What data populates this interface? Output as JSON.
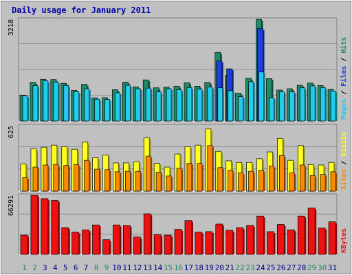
{
  "title": "Daily usage for January 2011",
  "colors": {
    "background": "#c0c0c0",
    "plot_bg": "#c0c0c0",
    "hits": "#1f8a6a",
    "files": "#1e3fe0",
    "pages": "#22ccee",
    "visits": "#ffff22",
    "sites": "#ff8a00",
    "kbytes": "#ee1111",
    "title": "#0000aa",
    "weekend": "#1f8a6a",
    "weekday": "#000088"
  },
  "chart_data": [
    {
      "type": "bar",
      "panel": "top",
      "axis_max_label": "3218",
      "ylim": [
        0,
        3218
      ],
      "categories": [
        "1",
        "2",
        "3",
        "4",
        "5",
        "6",
        "7",
        "8",
        "9",
        "10",
        "11",
        "12",
        "13",
        "14",
        "15",
        "16",
        "17",
        "18",
        "19",
        "20",
        "21",
        "22",
        "23",
        "24",
        "25",
        "26",
        "27",
        "28",
        "29",
        "30",
        "31"
      ],
      "weekend_days": [
        "1",
        "2",
        "8",
        "9",
        "15",
        "16",
        "22",
        "23",
        "29",
        "30"
      ],
      "series": [
        {
          "name": "Hits",
          "values": [
            820,
            1220,
            1320,
            1310,
            1190,
            970,
            1160,
            730,
            740,
            990,
            1230,
            1080,
            1300,
            1050,
            1070,
            1100,
            1210,
            1100,
            1220,
            2170,
            1440,
            880,
            1350,
            3218,
            1340,
            980,
            1020,
            1130,
            1200,
            1120,
            1000
          ]
        },
        {
          "name": "Files",
          "values": [
            0,
            0,
            0,
            0,
            0,
            0,
            0,
            0,
            0,
            0,
            0,
            0,
            0,
            0,
            0,
            0,
            0,
            0,
            0,
            1900,
            1650,
            0,
            0,
            2920,
            0,
            0,
            0,
            0,
            0,
            0,
            0
          ]
        },
        {
          "name": "Pages",
          "values": [
            790,
            1120,
            1270,
            1230,
            1120,
            930,
            1020,
            690,
            680,
            890,
            1130,
            1020,
            1040,
            920,
            1020,
            990,
            1060,
            1010,
            1070,
            1050,
            960,
            770,
            1240,
            1550,
            740,
            920,
            920,
            1050,
            1110,
            1060,
            950
          ]
        }
      ],
      "legend": [
        {
          "label": "Hits",
          "color_key": "hits"
        },
        {
          "label": "Files",
          "color_key": "files"
        },
        {
          "label": "Pages",
          "color_key": "pages"
        }
      ]
    },
    {
      "type": "bar",
      "panel": "middle",
      "axis_max_label": "625",
      "ylim": [
        0,
        625
      ],
      "categories": [
        "1",
        "2",
        "3",
        "4",
        "5",
        "6",
        "7",
        "8",
        "9",
        "10",
        "11",
        "12",
        "13",
        "14",
        "15",
        "16",
        "17",
        "18",
        "19",
        "20",
        "21",
        "22",
        "23",
        "24",
        "25",
        "26",
        "27",
        "28",
        "29",
        "30",
        "31"
      ],
      "series": [
        {
          "name": "Visits",
          "values": [
            260,
            405,
            420,
            440,
            425,
            400,
            470,
            320,
            345,
            270,
            270,
            280,
            510,
            265,
            230,
            355,
            425,
            440,
            595,
            380,
            290,
            275,
            275,
            310,
            375,
            505,
            295,
            435,
            255,
            250,
            275
          ]
        },
        {
          "name": "Sites",
          "values": [
            130,
            230,
            250,
            255,
            245,
            255,
            295,
            210,
            205,
            185,
            190,
            190,
            335,
            180,
            145,
            220,
            265,
            265,
            435,
            225,
            200,
            175,
            190,
            200,
            240,
            340,
            175,
            250,
            150,
            160,
            185
          ]
        }
      ],
      "legend": [
        {
          "label": "Sites",
          "color_key": "sites"
        },
        {
          "label": "Visits",
          "color_key": "visits"
        }
      ]
    },
    {
      "type": "bar",
      "panel": "bottom",
      "axis_max_label": "66291",
      "ylim": [
        0,
        66291
      ],
      "categories": [
        "1",
        "2",
        "3",
        "4",
        "5",
        "6",
        "7",
        "8",
        "9",
        "10",
        "11",
        "12",
        "13",
        "14",
        "15",
        "16",
        "17",
        "18",
        "19",
        "20",
        "21",
        "22",
        "23",
        "24",
        "25",
        "26",
        "27",
        "28",
        "29",
        "30",
        "31"
      ],
      "series": [
        {
          "name": "KBytes",
          "values": [
            21500,
            66291,
            62500,
            60500,
            30000,
            25000,
            27500,
            33000,
            16500,
            33000,
            32500,
            19500,
            45500,
            22000,
            21500,
            28000,
            38000,
            25000,
            25500,
            34000,
            27000,
            30000,
            32500,
            43000,
            25500,
            33500,
            27500,
            43000,
            52000,
            29500,
            36500
          ]
        }
      ],
      "legend": [
        {
          "label": "KBytes",
          "color_key": "kbytes"
        }
      ]
    }
  ]
}
